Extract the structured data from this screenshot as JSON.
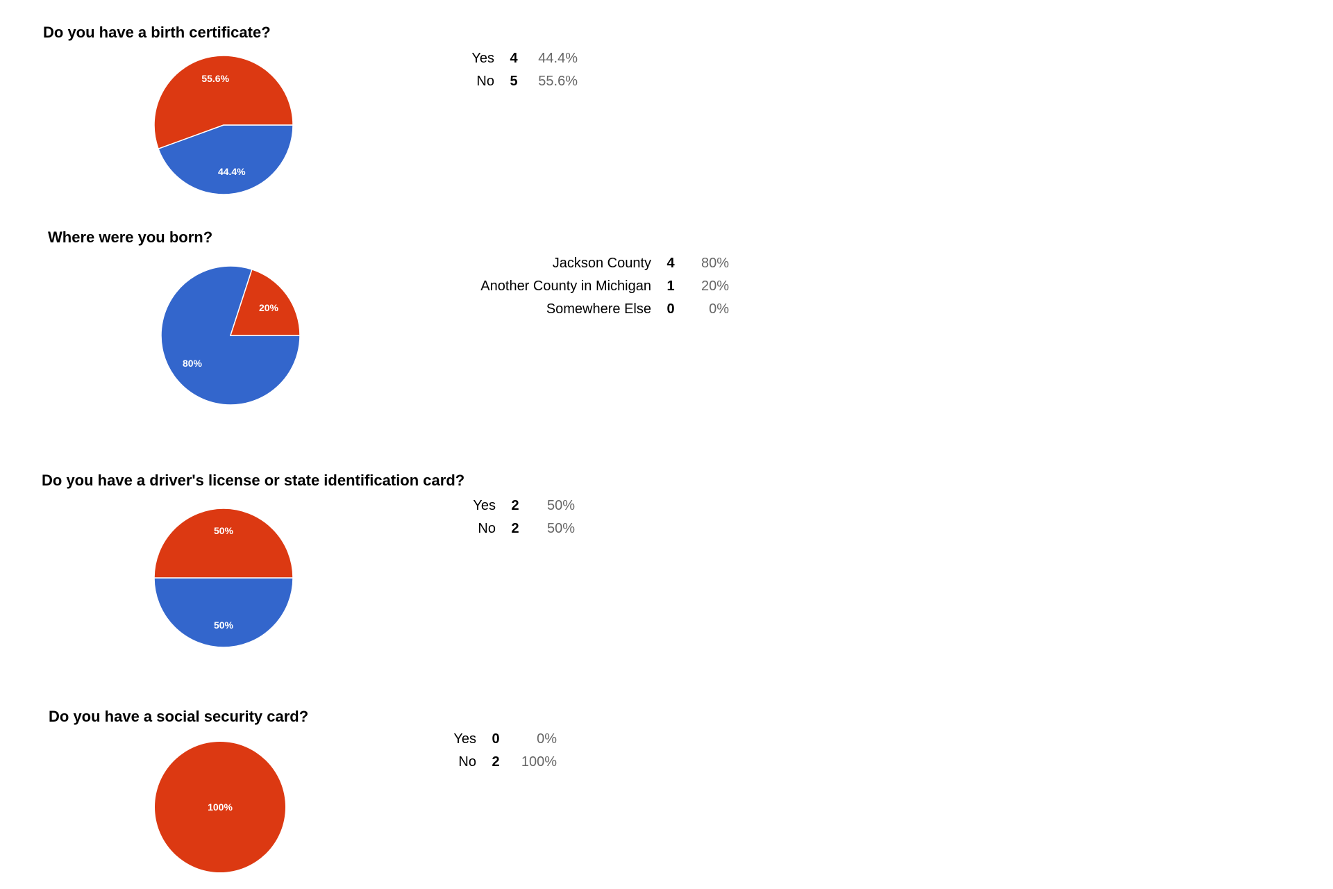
{
  "colors": {
    "red": "#dc3912",
    "blue": "#3366cc",
    "separator": "#ffffff",
    "percent_text": "#666666"
  },
  "questions": [
    {
      "title": "Do you have a birth certificate?",
      "rows": [
        {
          "label": "Yes",
          "count": "4",
          "percent": "44.4%"
        },
        {
          "label": "No",
          "count": "5",
          "percent": "55.6%"
        }
      ]
    },
    {
      "title": "Where were you born?",
      "rows": [
        {
          "label": "Jackson County",
          "count": "4",
          "percent": "80%"
        },
        {
          "label": "Another County in Michigan",
          "count": "1",
          "percent": "20%"
        },
        {
          "label": "Somewhere Else",
          "count": "0",
          "percent": "0%"
        }
      ]
    },
    {
      "title": "Do you have a driver's license or state identification card?",
      "rows": [
        {
          "label": "Yes",
          "count": "2",
          "percent": "50%"
        },
        {
          "label": "No",
          "count": "2",
          "percent": "50%"
        }
      ]
    },
    {
      "title": "Do you have a social security card?",
      "rows": [
        {
          "label": "Yes",
          "count": "0",
          "percent": "0%"
        },
        {
          "label": "No",
          "count": "2",
          "percent": "100%"
        }
      ]
    }
  ],
  "chart_data": [
    {
      "type": "pie",
      "title": "Do you have a birth certificate?",
      "categories": [
        "Yes",
        "No"
      ],
      "values": [
        4,
        5
      ],
      "slice_labels": [
        "44.4%",
        "55.6%"
      ],
      "colors": [
        "#3366cc",
        "#dc3912"
      ],
      "legend": "none"
    },
    {
      "type": "pie",
      "title": "Where were you born?",
      "categories": [
        "Jackson County",
        "Another County in Michigan",
        "Somewhere Else"
      ],
      "values": [
        4,
        1,
        0
      ],
      "slice_labels": [
        "80%",
        "20%",
        ""
      ],
      "colors": [
        "#3366cc",
        "#dc3912",
        "#ff9900"
      ],
      "legend": "none"
    },
    {
      "type": "pie",
      "title": "Do you have a driver's license or state identification card?",
      "categories": [
        "Yes",
        "No"
      ],
      "values": [
        2,
        2
      ],
      "slice_labels": [
        "50%",
        "50%"
      ],
      "colors": [
        "#3366cc",
        "#dc3912"
      ],
      "legend": "none"
    },
    {
      "type": "pie",
      "title": "Do you have a social security card?",
      "categories": [
        "Yes",
        "No"
      ],
      "values": [
        0,
        2
      ],
      "slice_labels": [
        "",
        "100%"
      ],
      "colors": [
        "#3366cc",
        "#dc3912"
      ],
      "legend": "none"
    }
  ]
}
